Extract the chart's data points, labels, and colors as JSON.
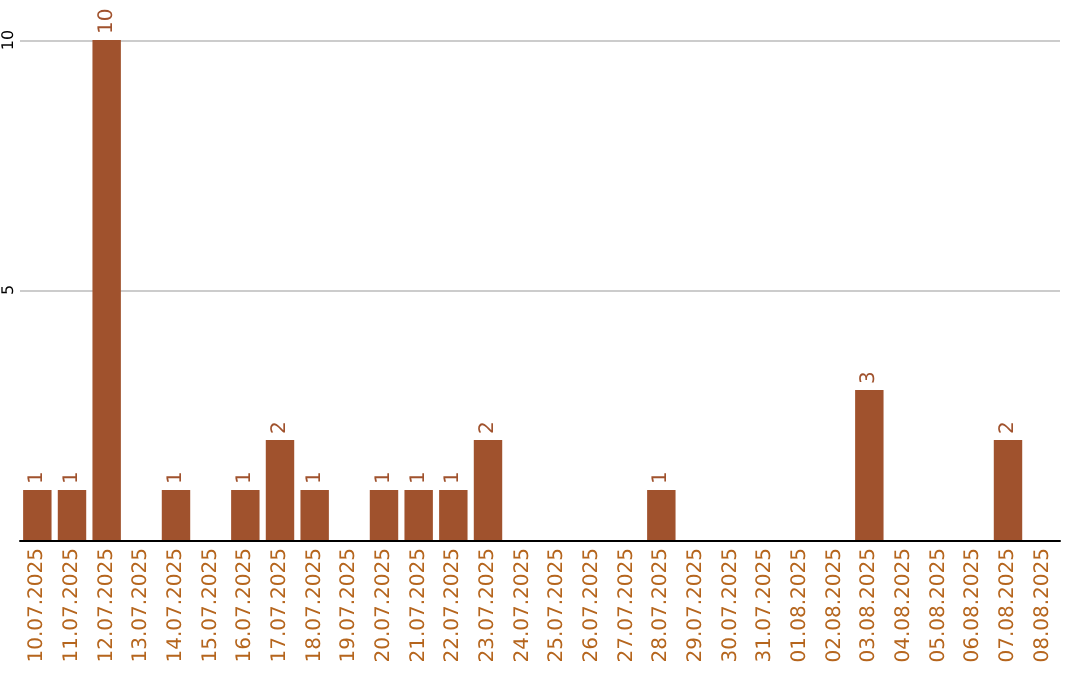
{
  "chart_data": {
    "type": "bar",
    "categories": [
      "10.07.2025",
      "11.07.2025",
      "12.07.2025",
      "13.07.2025",
      "14.07.2025",
      "15.07.2025",
      "16.07.2025",
      "17.07.2025",
      "18.07.2025",
      "19.07.2025",
      "20.07.2025",
      "21.07.2025",
      "22.07.2025",
      "23.07.2025",
      "24.07.2025",
      "25.07.2025",
      "26.07.2025",
      "27.07.2025",
      "28.07.2025",
      "29.07.2025",
      "30.07.2025",
      "31.07.2025",
      "01.08.2025",
      "02.08.2025",
      "03.08.2025",
      "04.08.2025",
      "05.08.2025",
      "06.08.2025",
      "07.08.2025",
      "08.08.2025"
    ],
    "values": [
      1,
      1,
      10,
      0,
      1,
      0,
      1,
      2,
      1,
      0,
      1,
      1,
      1,
      2,
      0,
      0,
      0,
      0,
      1,
      0,
      0,
      0,
      0,
      0,
      3,
      0,
      0,
      0,
      2,
      0
    ],
    "value_labels": [
      "1",
      "1",
      "10",
      null,
      "1",
      null,
      "1",
      "2",
      "1",
      null,
      "1",
      "1",
      "1",
      "2",
      null,
      null,
      null,
      null,
      "1",
      null,
      null,
      null,
      null,
      null,
      "3",
      null,
      null,
      null,
      "2",
      null
    ],
    "color": "#a0522d",
    "ylim": [
      0,
      10
    ],
    "yticks": [
      {
        "value": 0,
        "label": null
      },
      5,
      10
    ],
    "grid": "y"
  }
}
